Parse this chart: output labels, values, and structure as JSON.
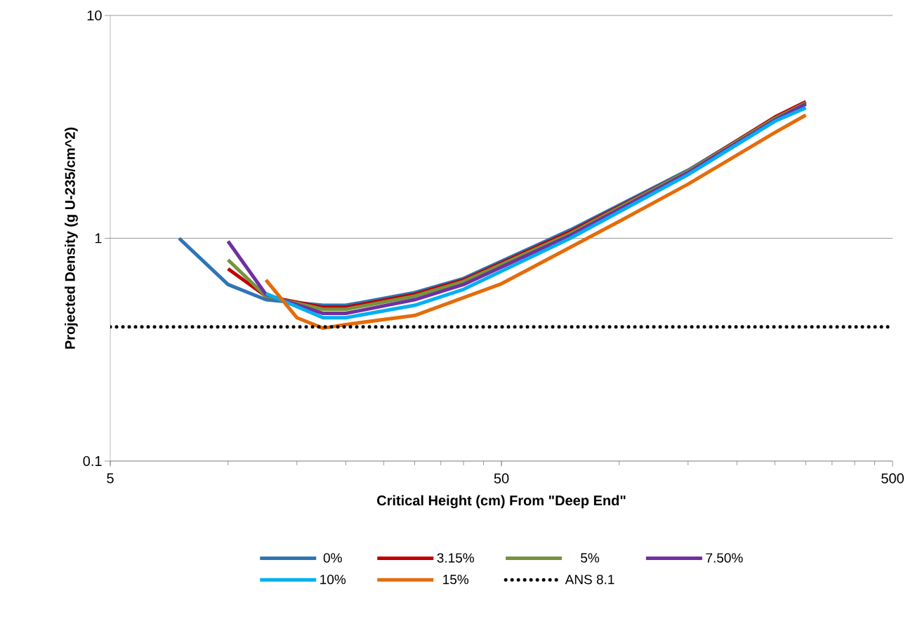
{
  "chart_data": {
    "type": "line",
    "xlabel": "Critical Height (cm) From \"Deep End\"",
    "ylabel": "Projected Density (g U-235/cm^2)",
    "log": "xy",
    "xlim": [
      5,
      500
    ],
    "ylim": [
      0.1,
      10
    ],
    "xticks": [
      5,
      50,
      500
    ],
    "yticks": [
      0.1,
      1,
      10
    ],
    "grid": "y",
    "legend": "bottom",
    "line_style": "solid",
    "series": [
      {
        "name": "0%",
        "color": "#2e75b6",
        "x": [
          7.5,
          10,
          12.5,
          17.5,
          20,
          30,
          40,
          75,
          150,
          250,
          300
        ],
        "values": [
          1.0,
          0.62,
          0.53,
          0.5,
          0.5,
          0.57,
          0.66,
          1.09,
          2.02,
          3.47,
          4.0
        ]
      },
      {
        "name": "3.15%",
        "color": "#c00000",
        "x": [
          10,
          12.5,
          17.5,
          20,
          30,
          40,
          75,
          150,
          250,
          300
        ],
        "values": [
          0.73,
          0.55,
          0.49,
          0.49,
          0.56,
          0.65,
          1.07,
          2.0,
          3.5,
          4.1
        ]
      },
      {
        "name": "5%",
        "color": "#77933c",
        "x": [
          10,
          12.5,
          17.5,
          20,
          30,
          40,
          75,
          150,
          250,
          300
        ],
        "values": [
          0.8,
          0.55,
          0.48,
          0.48,
          0.55,
          0.64,
          1.05,
          2.0,
          3.45,
          4.05
        ]
      },
      {
        "name": "7.50%",
        "color": "#7030a0",
        "x": [
          10,
          12.5,
          17.5,
          20,
          30,
          40,
          75,
          150,
          250,
          300
        ],
        "values": [
          0.97,
          0.56,
          0.46,
          0.46,
          0.53,
          0.62,
          1.03,
          1.97,
          3.4,
          4.0
        ]
      },
      {
        "name": "10%",
        "color": "#00b0f0",
        "x": [
          12.5,
          17.5,
          20,
          30,
          40,
          75,
          150,
          250,
          300
        ],
        "values": [
          0.565,
          0.44,
          0.44,
          0.5,
          0.59,
          1.0,
          1.93,
          3.35,
          3.85
        ]
      },
      {
        "name": "15%",
        "color": "#e46c0a",
        "x": [
          12.5,
          15,
          17.5,
          20,
          30,
          50,
          100,
          150,
          250,
          300
        ],
        "values": [
          0.65,
          0.44,
          0.395,
          0.41,
          0.45,
          0.625,
          1.19,
          1.75,
          2.98,
          3.57
        ]
      }
    ],
    "ref_lines": [
      {
        "axis": "y",
        "value": 0.4,
        "label": "ANS 8.1",
        "color": "#000000",
        "line_style": "dotted"
      }
    ]
  }
}
